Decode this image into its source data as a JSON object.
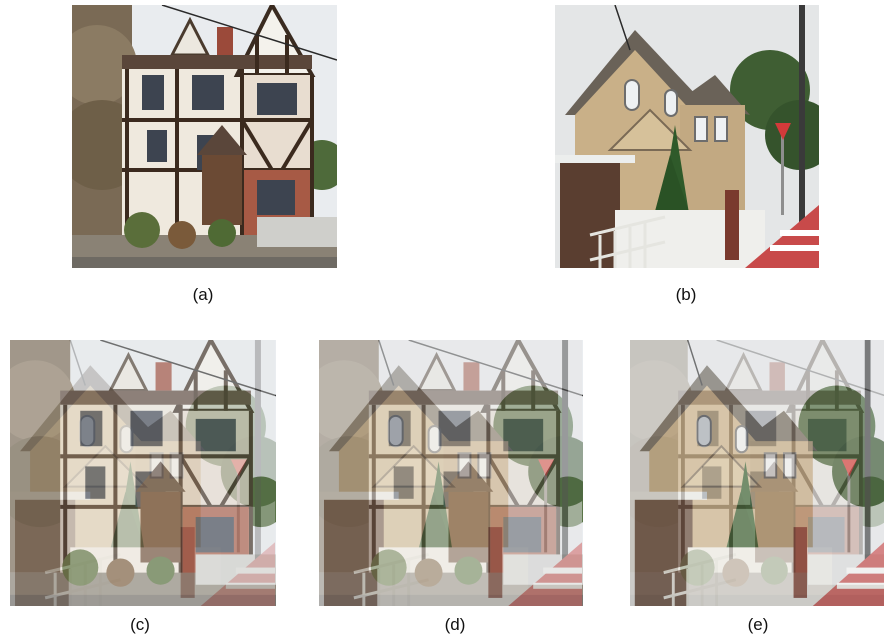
{
  "figure": {
    "panels": [
      {
        "id": "a",
        "caption": "(a)"
      },
      {
        "id": "b",
        "caption": "(b)"
      },
      {
        "id": "c",
        "caption": "(c)"
      },
      {
        "id": "d",
        "caption": "(d)"
      },
      {
        "id": "e",
        "caption": "(e)"
      }
    ]
  }
}
